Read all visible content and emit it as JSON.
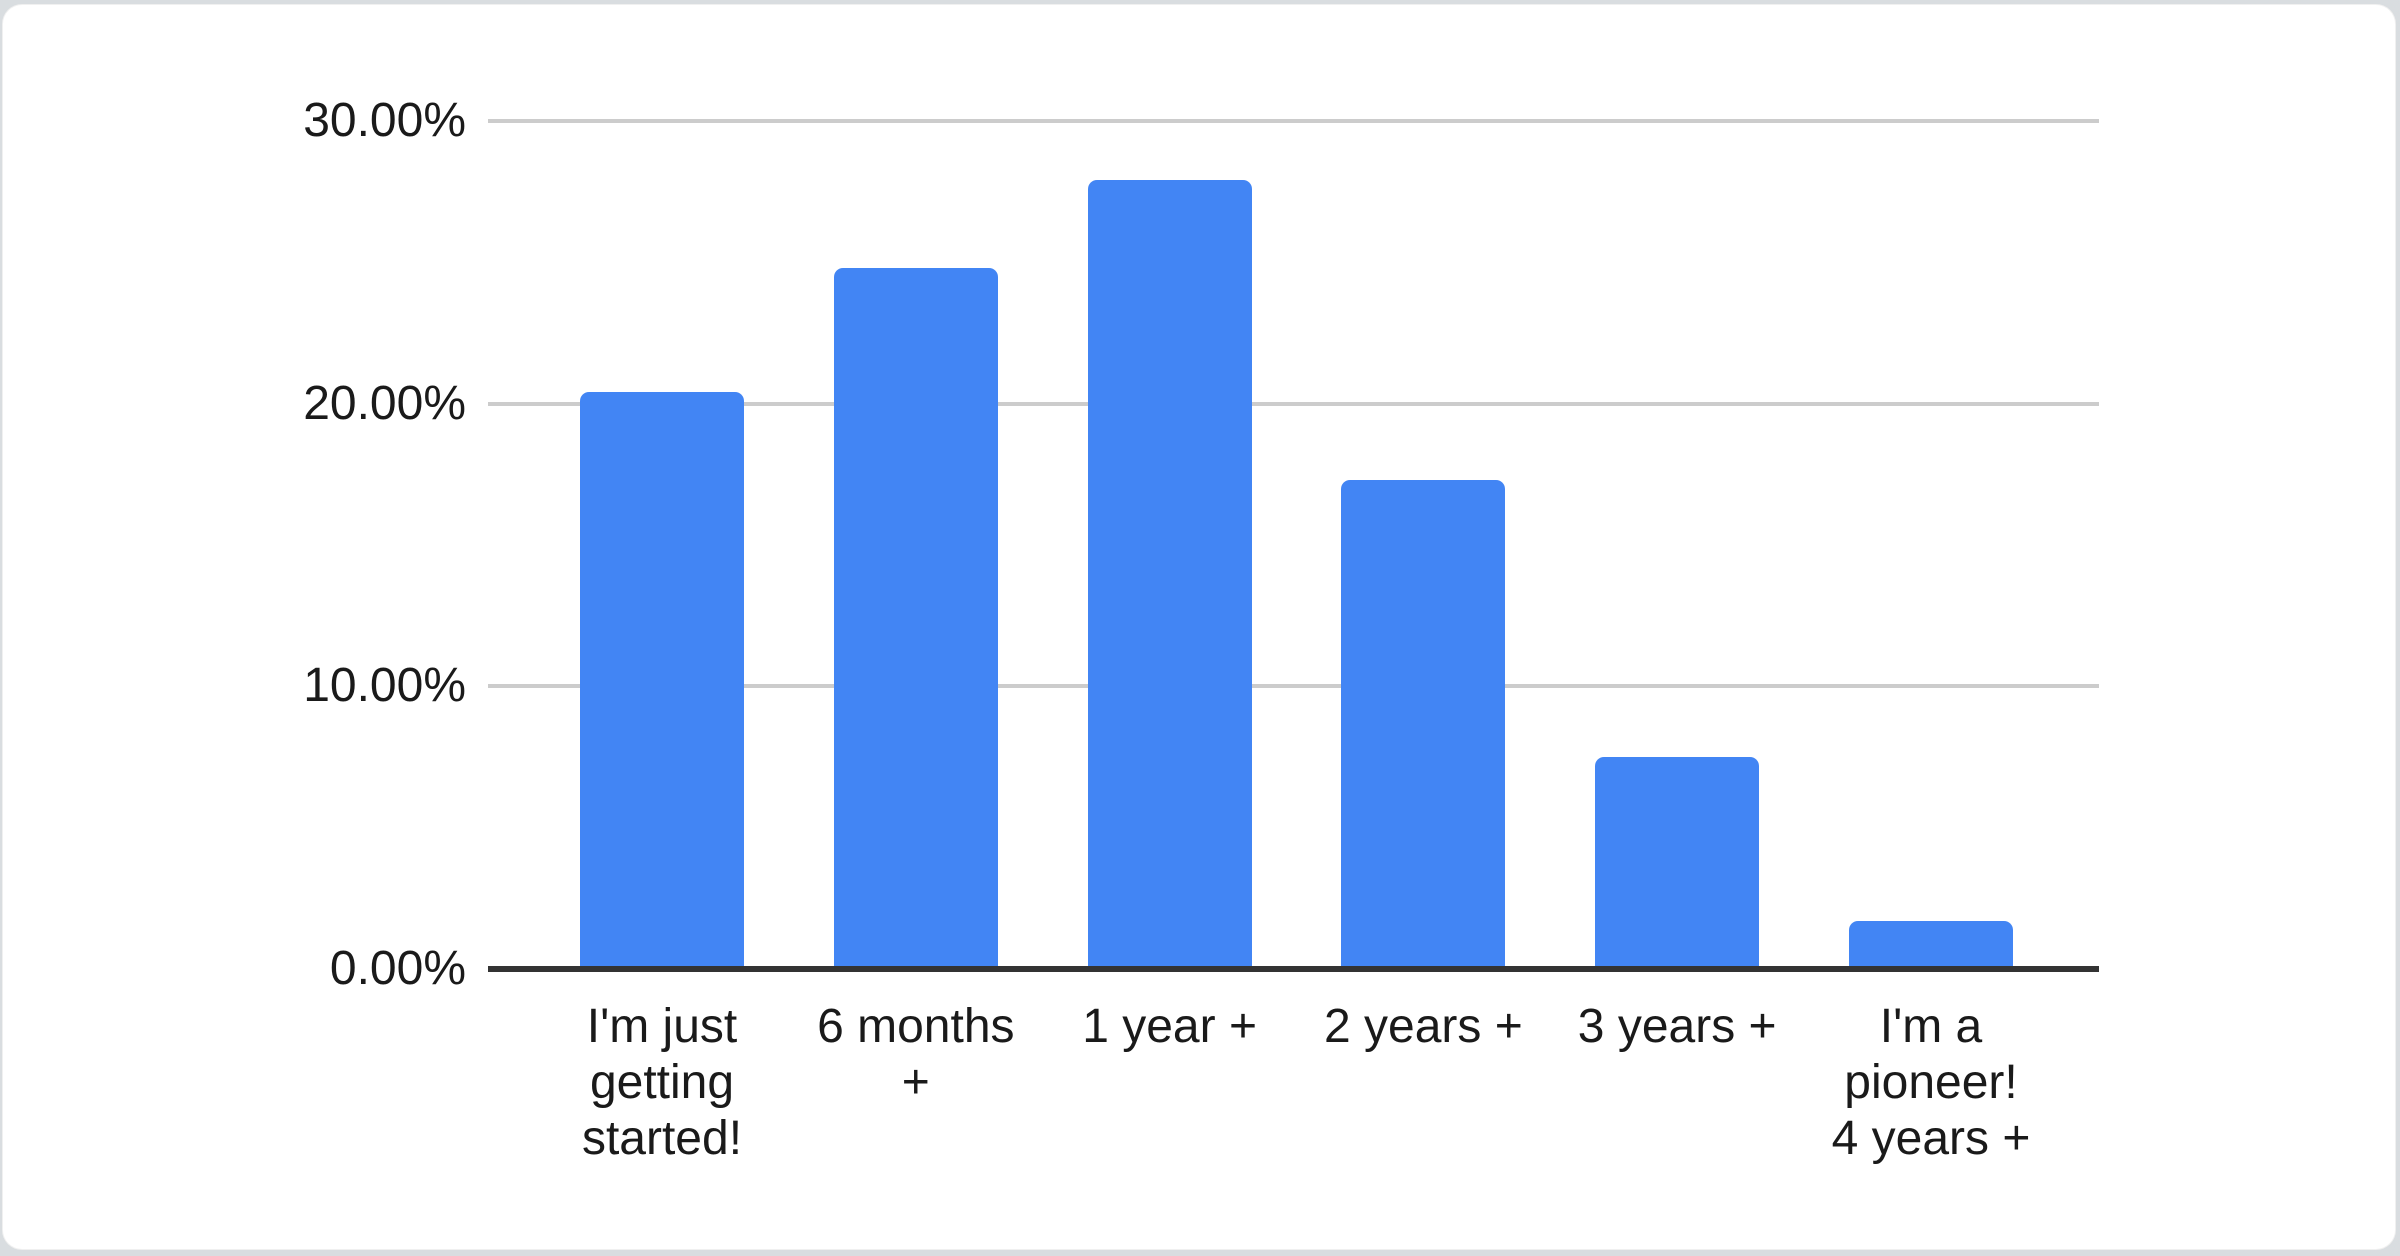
{
  "page": {
    "background_color": "#d9dde0"
  },
  "card": {
    "background_color": "#ffffff"
  },
  "chart_data": {
    "type": "bar",
    "title": "",
    "xlabel": "",
    "ylabel": "",
    "categories": [
      "I'm just getting started!",
      "6 months +",
      "1 year +",
      "2 years +",
      "3 years +",
      "I'm a pioneer! 4 years +"
    ],
    "category_lines": [
      [
        "I'm just",
        "getting",
        "started!"
      ],
      [
        "6 months",
        "+"
      ],
      [
        "1 year +"
      ],
      [
        "2 years +"
      ],
      [
        "3 years +"
      ],
      [
        "I'm a",
        "pioneer!",
        "4 years +"
      ]
    ],
    "values": [
      20.4,
      24.8,
      27.9,
      17.3,
      7.5,
      1.7
    ],
    "unit": "%",
    "ylim": [
      0,
      30
    ],
    "y_ticks": [
      {
        "label": "30.00%",
        "value": 30
      },
      {
        "label": "20.00%",
        "value": 20
      },
      {
        "label": "10.00%",
        "value": 10
      },
      {
        "label": "0.00%",
        "value": 0
      }
    ],
    "grid": true,
    "legend": "none",
    "colors": {
      "bar": "#4285F4",
      "gridline": "#cccccc",
      "baseline": "#333333",
      "text": "#1a1a1a"
    }
  }
}
